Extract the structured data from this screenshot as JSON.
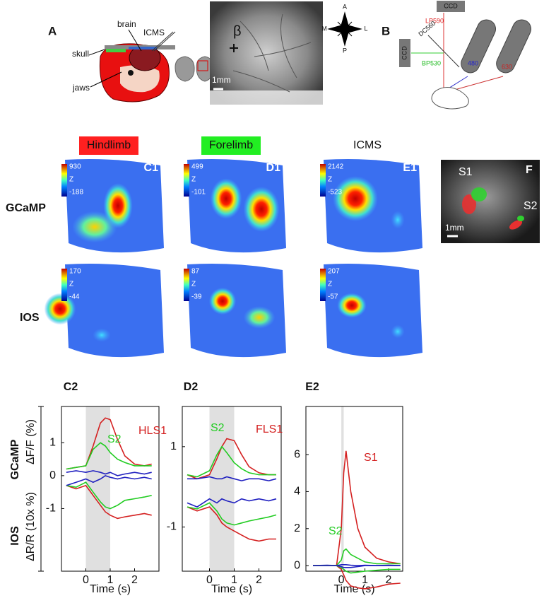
{
  "panel_a": {
    "label": "A",
    "brain": "brain",
    "icms": "ICMS",
    "skull": "skull",
    "jaws": "jaws",
    "scale": "1mm",
    "beta": "β",
    "compass": [
      "A",
      "M",
      "L",
      "P"
    ]
  },
  "panel_b": {
    "label": "B",
    "ccd_top": "CCD",
    "lp": "LP590",
    "dc": "DC560",
    "ccd_side": "CCD",
    "bp": "BP530",
    "led_blue": "480",
    "led_red": "630"
  },
  "maps": {
    "rows": [
      "GCaMP",
      "IOS"
    ],
    "scale": "1mm",
    "columns": [
      {
        "title": "Hindlimb",
        "title_color": "#ff2020",
        "label": "C1",
        "gcamp": {
          "max": 930,
          "unit": "Z",
          "min": -188
        },
        "ios": {
          "max": 170,
          "unit": "Z",
          "min": -44
        }
      },
      {
        "title": "Forelimb",
        "title_color": "#22ee22",
        "label": "D1",
        "gcamp": {
          "max": 499,
          "unit": "Z",
          "min": -101
        },
        "ios": {
          "max": 87,
          "unit": "Z",
          "min": -39
        }
      },
      {
        "title": "ICMS",
        "title_color": null,
        "label": "E1",
        "gcamp": {
          "max": 2142,
          "unit": "Z",
          "min": -523
        },
        "ios": {
          "max": 207,
          "unit": "Z",
          "min": -57
        }
      }
    ]
  },
  "panel_f": {
    "label": "F",
    "s1": "S1",
    "s2": "S2",
    "scale": "1mm"
  },
  "traces": {
    "row_labels": [
      "GCaMP",
      "IOS"
    ],
    "gcamp_unit": "ΔF/F (%)",
    "ios_unit": "ΔR/R (10x %)"
  },
  "chart_data": [
    {
      "type": "line",
      "title": "C2",
      "xlabel": "Time (s)",
      "xlim": [
        -1,
        3
      ],
      "xticks": [
        0,
        1,
        2
      ],
      "ylim": [
        -2.9,
        2.1
      ],
      "yticks": [
        -1,
        0,
        1
      ],
      "stim": [
        0,
        1
      ],
      "x": [
        -0.8,
        -0.4,
        0,
        0.3,
        0.6,
        0.8,
        1.0,
        1.3,
        1.6,
        2.0,
        2.4,
        2.7
      ],
      "series": [
        {
          "color": "#d42020",
          "values": [
            0.2,
            0.25,
            0.3,
            0.9,
            1.6,
            1.75,
            1.7,
            1.1,
            0.6,
            0.35,
            0.3,
            0.35
          ]
        },
        {
          "color": "#22cc22",
          "values": [
            0.2,
            0.25,
            0.3,
            0.8,
            1.0,
            0.9,
            0.7,
            0.5,
            0.4,
            0.3,
            0.3,
            0.3
          ]
        },
        {
          "color": "#2020c0",
          "values": [
            0.1,
            0.15,
            0.1,
            0.15,
            0.1,
            0.05,
            0.1,
            0.0,
            0.05,
            0.1,
            0.05,
            0.1
          ]
        },
        {
          "color": "#d42020",
          "values": [
            -0.3,
            -0.4,
            -0.3,
            -0.6,
            -0.9,
            -1.1,
            -1.2,
            -1.3,
            -1.25,
            -1.2,
            -1.15,
            -1.2
          ]
        },
        {
          "color": "#22cc22",
          "values": [
            -0.3,
            -0.35,
            -0.2,
            -0.5,
            -0.8,
            -0.95,
            -1.0,
            -0.9,
            -0.75,
            -0.7,
            -0.65,
            -0.6
          ]
        },
        {
          "color": "#2020c0",
          "values": [
            -0.3,
            -0.2,
            -0.1,
            -0.2,
            -0.1,
            0.0,
            -0.05,
            -0.1,
            -0.05,
            -0.1,
            -0.05,
            -0.1
          ]
        }
      ],
      "annotations": [
        {
          "text": "HLS1",
          "color": "#d42020"
        },
        {
          "text": "S2",
          "color": "#22cc22"
        }
      ]
    },
    {
      "type": "line",
      "title": "D2",
      "xlabel": "Time (s)",
      "xlim": [
        -1.1,
        2.9
      ],
      "xticks": [
        0,
        1,
        2
      ],
      "ylim": [
        -2.1,
        2.0
      ],
      "yticks": [
        -1,
        1
      ],
      "stim": [
        0,
        1
      ],
      "x": [
        -0.9,
        -0.5,
        0,
        0.3,
        0.5,
        0.7,
        1.0,
        1.3,
        1.6,
        2.0,
        2.4,
        2.7
      ],
      "series": [
        {
          "color": "#d42020",
          "values": [
            0.3,
            0.2,
            0.3,
            0.7,
            1.0,
            1.2,
            1.15,
            0.8,
            0.5,
            0.35,
            0.3,
            0.3
          ]
        },
        {
          "color": "#22cc22",
          "values": [
            0.3,
            0.25,
            0.4,
            0.8,
            1.0,
            0.85,
            0.6,
            0.45,
            0.35,
            0.3,
            0.3,
            0.3
          ]
        },
        {
          "color": "#2020c0",
          "values": [
            0.2,
            0.2,
            0.25,
            0.2,
            0.2,
            0.25,
            0.2,
            0.15,
            0.2,
            0.2,
            0.15,
            0.2
          ]
        },
        {
          "color": "#d42020",
          "values": [
            -0.5,
            -0.6,
            -0.5,
            -0.7,
            -0.9,
            -1.0,
            -1.1,
            -1.2,
            -1.3,
            -1.35,
            -1.3,
            -1.3
          ]
        },
        {
          "color": "#22cc22",
          "values": [
            -0.5,
            -0.55,
            -0.4,
            -0.6,
            -0.8,
            -0.9,
            -0.95,
            -0.9,
            -0.85,
            -0.8,
            -0.75,
            -0.7
          ]
        },
        {
          "color": "#2020c0",
          "values": [
            -0.4,
            -0.5,
            -0.3,
            -0.4,
            -0.3,
            -0.35,
            -0.4,
            -0.3,
            -0.35,
            -0.3,
            -0.35,
            -0.3
          ]
        }
      ],
      "annotations": [
        {
          "text": "FLS1",
          "color": "#d42020"
        },
        {
          "text": "S2",
          "color": "#22cc22"
        }
      ]
    },
    {
      "type": "line",
      "title": "E2",
      "xlabel": "Time (s)",
      "xlim": [
        -1.5,
        2.6
      ],
      "xticks": [
        0,
        1,
        2
      ],
      "ylim": [
        -0.3,
        8.6
      ],
      "yticks": [
        0,
        2,
        4,
        6
      ],
      "stim": [
        0,
        0.1
      ],
      "x": [
        -1.2,
        -0.6,
        -0.2,
        0,
        0.1,
        0.2,
        0.4,
        0.7,
        1.0,
        1.5,
        2.0,
        2.5
      ],
      "series": [
        {
          "color": "#d42020",
          "values": [
            0,
            0,
            0,
            2,
            5,
            6.2,
            4,
            2,
            1,
            0.4,
            0.2,
            0.1
          ]
        },
        {
          "color": "#22cc22",
          "values": [
            0,
            0,
            0,
            0.3,
            0.8,
            0.9,
            0.6,
            0.4,
            0.2,
            0.1,
            0.1,
            0.1
          ]
        },
        {
          "color": "#2020c0",
          "values": [
            0,
            0.02,
            0,
            0.05,
            0.05,
            0.05,
            0.02,
            0,
            0.02,
            0,
            0.02,
            0
          ]
        },
        {
          "color": "#d42020",
          "values": [
            0,
            0,
            0,
            -0.2,
            -0.5,
            -0.8,
            -1.1,
            -1.2,
            -1.25,
            -1.15,
            -1.0,
            -0.95
          ]
        },
        {
          "color": "#22cc22",
          "values": [
            0,
            0,
            0,
            -0.1,
            -0.2,
            -0.3,
            -0.4,
            -0.35,
            -0.3,
            -0.25,
            -0.2,
            -0.2
          ]
        },
        {
          "color": "#2020c0",
          "values": [
            0,
            0,
            0,
            -0.05,
            -0.1,
            -0.1,
            -0.1,
            -0.05,
            0,
            0,
            0,
            0
          ]
        }
      ],
      "annotations": [
        {
          "text": "S1",
          "color": "#d42020"
        },
        {
          "text": "S2",
          "color": "#22cc22"
        }
      ]
    }
  ]
}
